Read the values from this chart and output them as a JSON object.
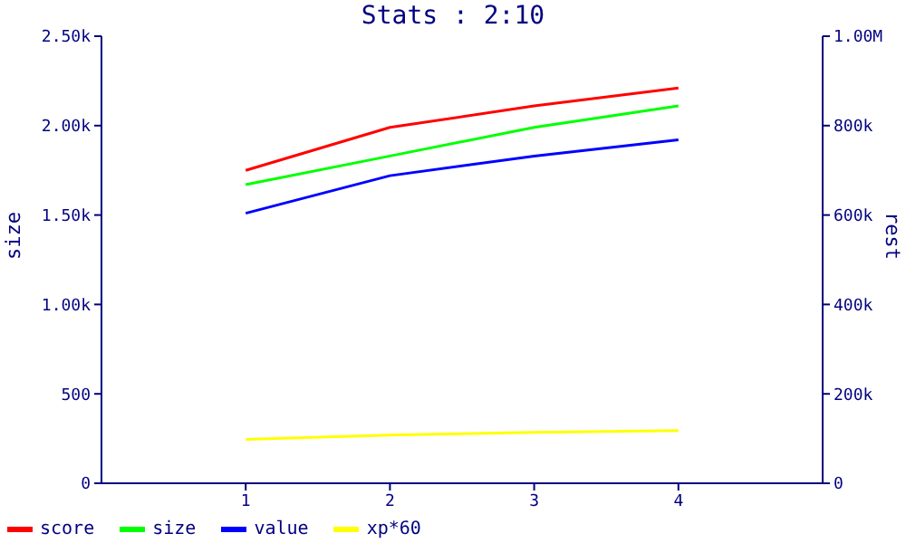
{
  "chart_data": {
    "type": "line",
    "title": "Stats : 2:10",
    "ylabel": "size",
    "y2label": "rest",
    "x": [
      1,
      2,
      3,
      4
    ],
    "xlim": [
      0,
      5
    ],
    "xticks": [
      1,
      2,
      3,
      4
    ],
    "ylim": [
      0,
      2500
    ],
    "yticks": [
      0,
      500,
      {
        "value": 1000,
        "label": "1.00k"
      },
      {
        "value": 1500,
        "label": "1.50k"
      },
      {
        "value": 2000,
        "label": "2.00k"
      },
      {
        "value": 2500,
        "label": "2.50k"
      }
    ],
    "y2lim": [
      0,
      1000000
    ],
    "y2ticks": [
      0,
      {
        "value": 200000,
        "label": "200k"
      },
      {
        "value": 400000,
        "label": "400k"
      },
      {
        "value": 600000,
        "label": "600k"
      },
      {
        "value": 800000,
        "label": "800k"
      },
      {
        "value": 1000000,
        "label": "1.00M"
      }
    ],
    "series": [
      {
        "name": "score",
        "color": "#ff0000",
        "axis": "y2",
        "values": [
          700000,
          796000,
          844000,
          884000
        ]
      },
      {
        "name": "size",
        "color": "#00ff00",
        "values": [
          1670,
          1830,
          1990,
          2110
        ]
      },
      {
        "name": "value",
        "color": "#0000ff",
        "axis": "y2",
        "values": [
          604000,
          688000,
          732000,
          768000
        ]
      },
      {
        "name": "xp*60",
        "color": "#ffff00",
        "axis": "y2",
        "values": [
          98000,
          108000,
          114000,
          118000
        ]
      }
    ],
    "legend": "bottom left",
    "marker": "none",
    "line_style": "solid"
  }
}
